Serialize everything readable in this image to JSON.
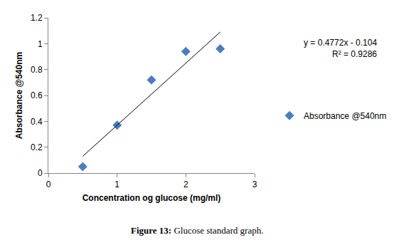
{
  "chart_data": {
    "type": "scatter",
    "x_label": "Concentration og glucose (mg/ml)",
    "y_label": "Absorbance @540nm",
    "caption": "Figure 13: Glucose standard graph.",
    "annotations": [
      "y = 0.4772x - 0.104",
      "R² = 0.9286"
    ],
    "x": [
      0.5,
      1,
      1.5,
      2,
      2.5
    ],
    "series": [
      {
        "name": "Absorbance @540nm",
        "color": "#4a7ebb",
        "marker": "diamond",
        "values": [
          0.05,
          0.37,
          0.72,
          0.94,
          0.96
        ]
      },
      {
        "type": "line",
        "color": "#000000",
        "line_style": "solid",
        "x": [
          0.5,
          2.5
        ],
        "values": [
          0.13,
          1.09
        ]
      }
    ],
    "xlim": [
      0,
      3
    ],
    "xticks": [
      0,
      1,
      2,
      3
    ],
    "ylim": [
      0,
      1.2
    ],
    "yticks": [
      0,
      0.2,
      0.4,
      0.6,
      0.8,
      1,
      1.2
    ],
    "grid": false,
    "legend": "right"
  }
}
